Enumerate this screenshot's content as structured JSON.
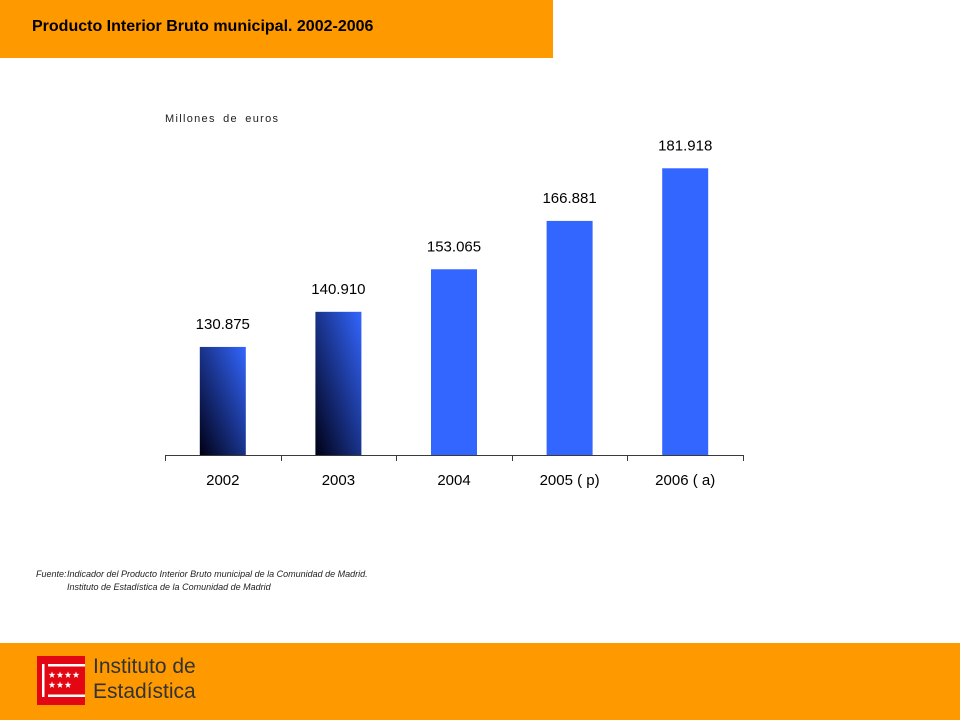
{
  "header": {
    "title": "Producto Interior Bruto municipal. 2002-2006"
  },
  "colors": {
    "brand_orange": "#FF9900",
    "bar_blue": "#3366FF",
    "bar_dark": "#000014",
    "axis": "#3A3A3A",
    "logo_red": "#E30613"
  },
  "chart_data": {
    "type": "bar",
    "ylabel": "Millones de euros",
    "categories": [
      "2002",
      "2003",
      "2004",
      "2005 ( p)",
      "2006 ( a)"
    ],
    "values": [
      130875,
      140910,
      153065,
      166881,
      181918
    ],
    "value_labels": [
      "130.875",
      "140.910",
      "153.065",
      "166.881",
      "181.918"
    ],
    "gradient_bars": [
      true,
      true,
      false,
      false,
      false
    ],
    "ylim": [
      100000,
      200000
    ],
    "grid": false
  },
  "source": {
    "prefix": "Fuente:",
    "line1": "Indicador del Producto Interior Bruto municipal de la Comunidad de Madrid.",
    "line2": "Instituto de Estadística de la Comunidad de Madrid"
  },
  "logo": {
    "line1": "Instituto de",
    "line2": "Estadística"
  }
}
